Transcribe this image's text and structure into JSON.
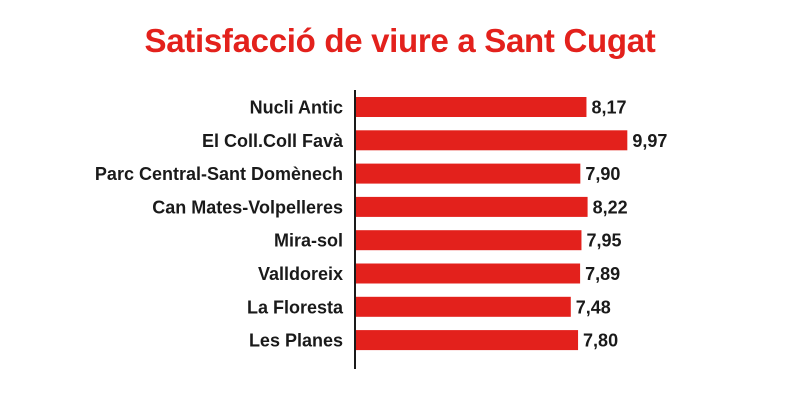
{
  "chart_data": {
    "type": "bar",
    "orientation": "horizontal",
    "title": "Satisfacció de viure a Sant Cugat",
    "categories": [
      "Nucli Antic",
      "El Coll.Coll Favà",
      "Parc Central-Sant Domènech",
      "Can Mates-Volpelleres",
      "Mira-sol",
      "Valldoreix",
      "La Floresta",
      "Les Planes"
    ],
    "values": [
      8.17,
      9.97,
      7.9,
      8.22,
      7.95,
      7.89,
      7.48,
      7.8
    ],
    "value_labels": [
      "8,17",
      "9,97",
      "7,90",
      "8,22",
      "7,95",
      "7,89",
      "7,48",
      "7,80"
    ],
    "bar_color": "#e3211c",
    "axis_color": "#1a1a1a",
    "grid": false,
    "legend": "none"
  }
}
